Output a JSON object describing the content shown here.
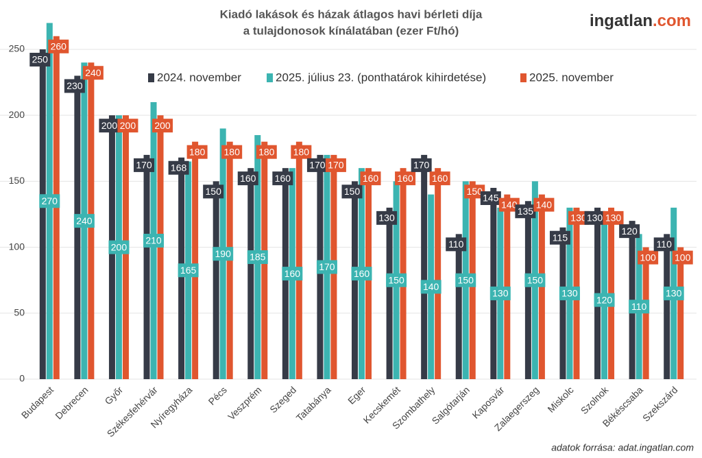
{
  "chart_data": {
    "type": "bar",
    "title": [
      "Kiadó lakások és házak átlagos havi bérleti díja",
      "a tulajdonosok kínálatában (ezer Ft/hó)"
    ],
    "logo": {
      "main": "ingatlan",
      "suffix": ".com"
    },
    "source": "adatok forrása: adat.ingatlan.com",
    "categories": [
      "Budapest",
      "Debrecen",
      "Győr",
      "Székesfehérvár",
      "Nyíregyháza",
      "Pécs",
      "Veszprém",
      "Szeged",
      "Tatabánya",
      "Eger",
      "Kecskemét",
      "Szombathely",
      "Salgótarján",
      "Kaposvár",
      "Zalaegerszeg",
      "Miskolc",
      "Szolnok",
      "Békéscsaba",
      "Szekszárd"
    ],
    "series": [
      {
        "name": "2024. november",
        "color": "#363b47",
        "values": [
          250,
          230,
          200,
          170,
          168,
          150,
          160,
          160,
          170,
          150,
          130,
          170,
          110,
          145,
          135,
          115,
          130,
          120,
          110
        ]
      },
      {
        "name": "2025. július 23. (ponthatárok kihirdetése)",
        "color": "#3cb4b1",
        "values": [
          270,
          240,
          200,
          210,
          165,
          190,
          185,
          160,
          170,
          160,
          150,
          140,
          150,
          130,
          150,
          130,
          120,
          110,
          130
        ]
      },
      {
        "name": "2025. november",
        "color": "#e0562f",
        "values": [
          260,
          240,
          200,
          200,
          180,
          180,
          180,
          180,
          170,
          160,
          160,
          160,
          150,
          140,
          140,
          130,
          130,
          100,
          100
        ]
      }
    ],
    "ylim": [
      0,
      270
    ],
    "yticks": [
      0,
      50,
      100,
      150,
      200,
      250
    ],
    "grid": true
  }
}
